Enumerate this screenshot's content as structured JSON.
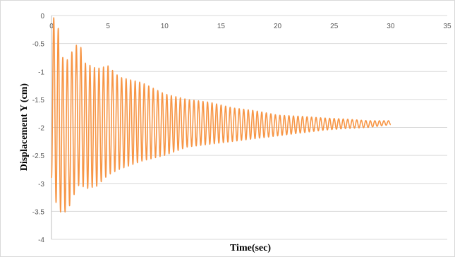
{
  "chart_data": {
    "type": "line",
    "title": "",
    "xlabel": "Time(sec)",
    "ylabel": "Displacement  Y (cm)",
    "xlim": [
      0,
      35
    ],
    "ylim": [
      -4,
      0
    ],
    "x_ticks": [
      0,
      5,
      10,
      15,
      20,
      25,
      30,
      35
    ],
    "y_ticks": [
      0,
      -0.5,
      -1,
      -1.5,
      -2,
      -2.5,
      -3,
      -3.5,
      -4
    ],
    "x_tick_labels": [
      "0",
      "5",
      "10",
      "15",
      "20",
      "25",
      "30",
      "35"
    ],
    "y_tick_labels": [
      "0",
      "-0.5",
      "-1",
      "-1.5",
      "-2",
      "-2.5",
      "-3",
      "-3.5",
      "-4"
    ],
    "grid": "horizontal",
    "legend": "none",
    "line_color": "#f79646",
    "series": [
      {
        "frequency_hz": 2.5,
        "duration_sec": 30,
        "equilibrium_y": -1.95,
        "envelope": {
          "t": [
            0,
            0.5,
            1,
            1.5,
            2,
            2.5,
            3,
            4,
            5,
            6,
            8,
            10,
            12,
            14,
            16,
            18,
            20,
            22,
            24,
            26,
            28,
            30
          ],
          "max": [
            0,
            -0.1,
            -0.75,
            -0.8,
            -0.55,
            -0.5,
            -0.85,
            -0.95,
            -0.9,
            -1.1,
            -1.2,
            -1.4,
            -1.5,
            -1.55,
            -1.65,
            -1.7,
            -1.78,
            -1.8,
            -1.83,
            -1.85,
            -1.88,
            -1.88
          ],
          "min": [
            -2.9,
            -3.45,
            -3.55,
            -3.45,
            -3.2,
            -3.0,
            -3.1,
            -3.05,
            -2.85,
            -2.75,
            -2.6,
            -2.5,
            -2.35,
            -2.3,
            -2.25,
            -2.2,
            -2.15,
            -2.1,
            -2.05,
            -2.02,
            -2.0,
            -1.95
          ]
        }
      }
    ]
  }
}
